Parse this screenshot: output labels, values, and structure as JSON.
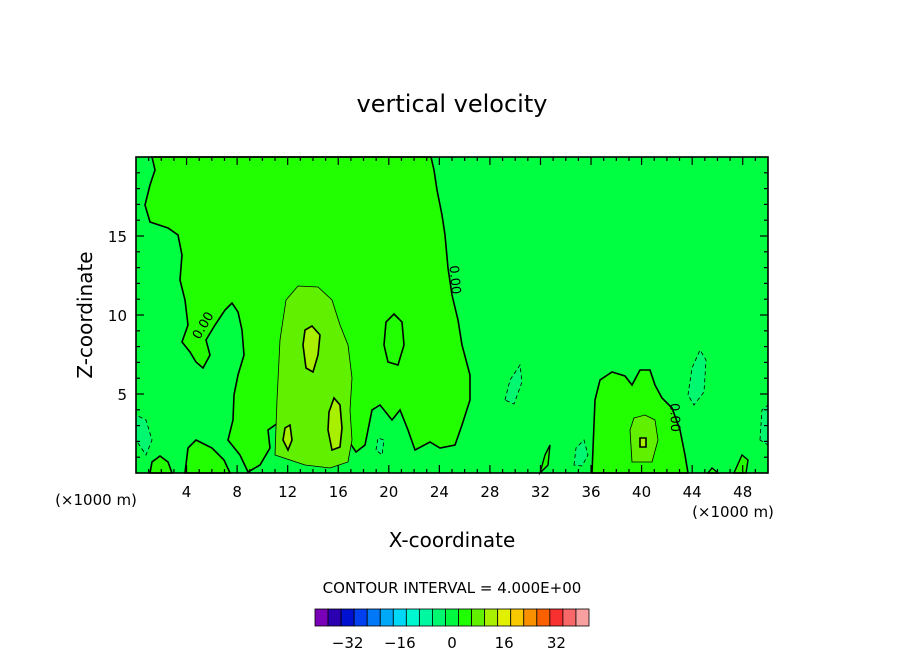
{
  "chart_data": {
    "type": "heatmap",
    "title": "vertical velocity",
    "xlabel": "X-coordinate",
    "ylabel": "Z-coordinate",
    "x_unit_label_left": "(×1000 m)",
    "x_unit_label_right": "(×1000 m)",
    "xlim": [
      0,
      50
    ],
    "ylim": [
      0,
      20
    ],
    "x_ticks": [
      4,
      8,
      12,
      16,
      20,
      24,
      28,
      32,
      36,
      40,
      44,
      48
    ],
    "y_ticks": [
      5,
      10,
      15
    ],
    "contour_labels": [
      {
        "text": "0.00",
        "x": 5.6,
        "y": 9.2,
        "angle": -60
      },
      {
        "text": "0.00",
        "x": 24.9,
        "y": 12.2,
        "angle": 85
      },
      {
        "text": "0.00",
        "x": 42.3,
        "y": 3.5,
        "angle": 88
      }
    ],
    "contour_interval_text": "CONTOUR INTERVAL = 4.000E+00",
    "colorbar": {
      "colors": [
        "#7a00b8",
        "#2a00b0",
        "#0010d0",
        "#0040f0",
        "#0078f8",
        "#00a8f8",
        "#00d8f8",
        "#00f8d0",
        "#00f8a0",
        "#00f870",
        "#00f840",
        "#20ff00",
        "#60f000",
        "#a8f000",
        "#e0f000",
        "#f8c800",
        "#f89000",
        "#f86000",
        "#f83030",
        "#f86868",
        "#f8a0a0"
      ],
      "tick_labels": [
        "-32",
        "-16",
        "0",
        "16",
        "32"
      ],
      "tick_values": [
        -32,
        -16,
        0,
        16,
        32
      ],
      "vmin": -42,
      "vmax": 42
    },
    "background_color": "#00ff40",
    "series": [
      {
        "level": "0",
        "color": "#20ff00"
      },
      {
        "level": "4",
        "color": "#60f000"
      },
      {
        "level": "8",
        "color": "#a8f000"
      },
      {
        "level": "-4",
        "color": "#00f870"
      }
    ]
  }
}
